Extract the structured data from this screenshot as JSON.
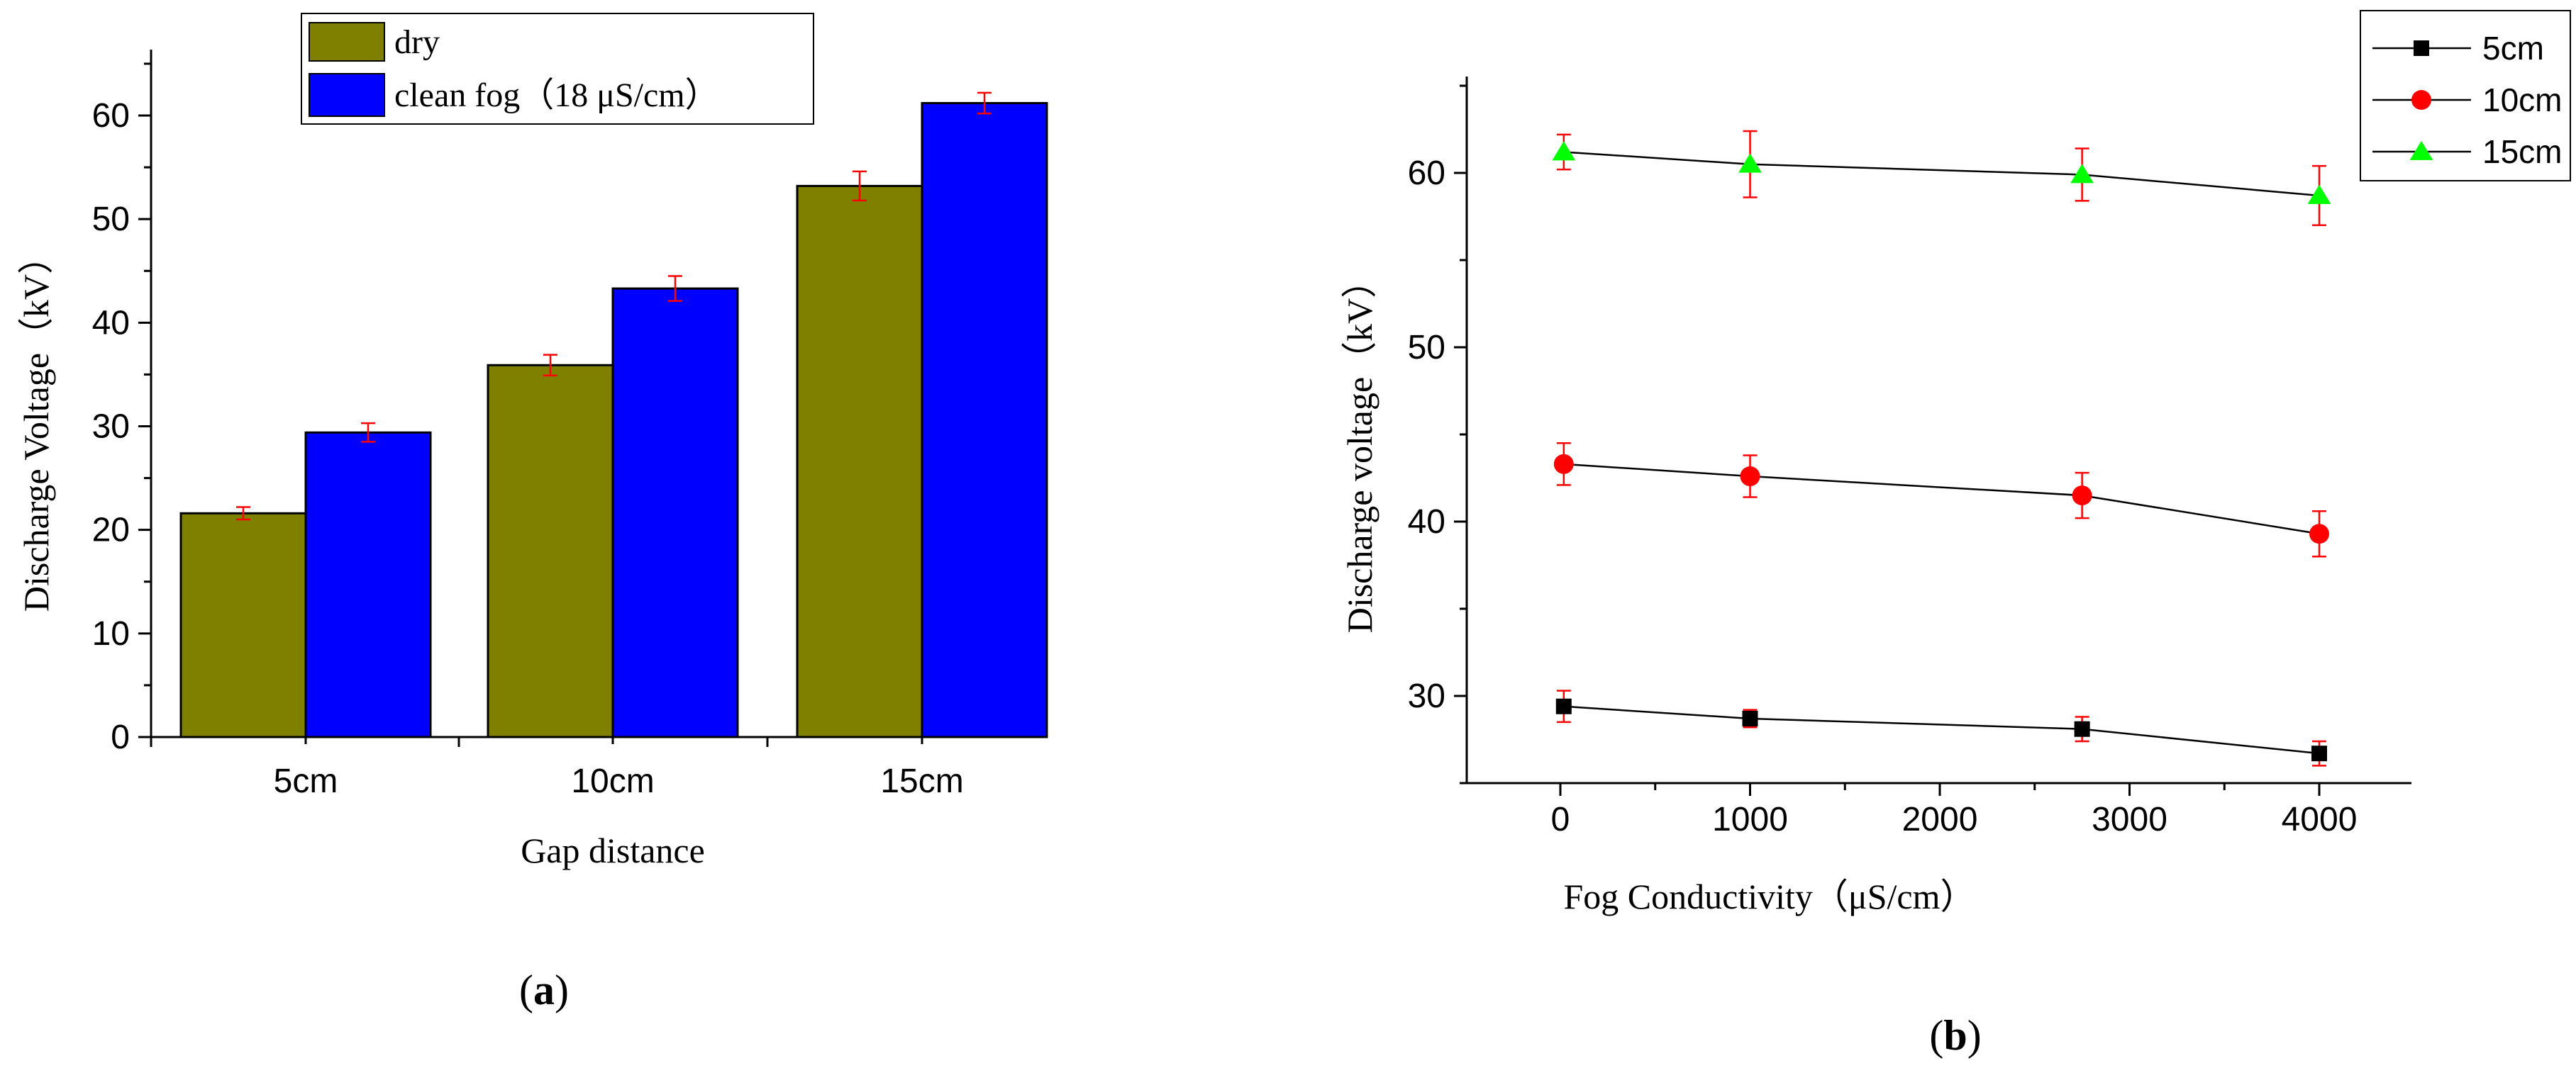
{
  "chart_data": [
    {
      "type": "bar",
      "panel_label": "a",
      "title": "",
      "xlabel": "Gap distance",
      "ylabel": "Discharge Voltage（kV）",
      "categories": [
        "5cm",
        "10cm",
        "15cm"
      ],
      "ylim": [
        0,
        65
      ],
      "yticks": [
        "0",
        "10",
        "20",
        "30",
        "40",
        "50",
        "60"
      ],
      "grid": false,
      "legend_position": "top-right",
      "series": [
        {
          "name": "dry",
          "color": "#808000",
          "values": [
            21.6,
            35.9,
            53.2
          ],
          "errors": [
            0.6,
            1.0,
            1.4
          ]
        },
        {
          "name": "clean fog（18 μS/cm）",
          "color": "#0000ff",
          "values": [
            29.4,
            43.3,
            61.2
          ],
          "errors": [
            0.9,
            1.2,
            1.0
          ]
        }
      ]
    },
    {
      "type": "line",
      "panel_label": "b",
      "title": "",
      "xlabel": "Fog Conductivity（μS/cm）",
      "ylabel": "Discharge voltage（kV）",
      "x": [
        18,
        1000,
        2750,
        4000
      ],
      "xlim": [
        -500,
        4500
      ],
      "xticks": [
        "0",
        "1000",
        "2000",
        "3000",
        "4000"
      ],
      "ylim": [
        25,
        65
      ],
      "yticks": [
        "30",
        "40",
        "50",
        "60"
      ],
      "grid": false,
      "legend_position": "top-right",
      "series": [
        {
          "name": "5cm",
          "marker": "square",
          "color": "#000000",
          "values": [
            29.4,
            28.7,
            28.1,
            26.7
          ],
          "errors": [
            0.9,
            0.5,
            0.7,
            0.7
          ]
        },
        {
          "name": "10cm",
          "marker": "circle",
          "color": "#ff0000",
          "values": [
            43.3,
            42.6,
            41.5,
            39.3
          ],
          "errors": [
            1.2,
            1.2,
            1.3,
            1.3
          ]
        },
        {
          "name": "15cm",
          "marker": "triangle",
          "color": "#00ff00",
          "values": [
            61.2,
            60.5,
            59.9,
            58.7
          ],
          "errors": [
            1.0,
            1.9,
            1.5,
            1.7
          ]
        }
      ]
    }
  ]
}
